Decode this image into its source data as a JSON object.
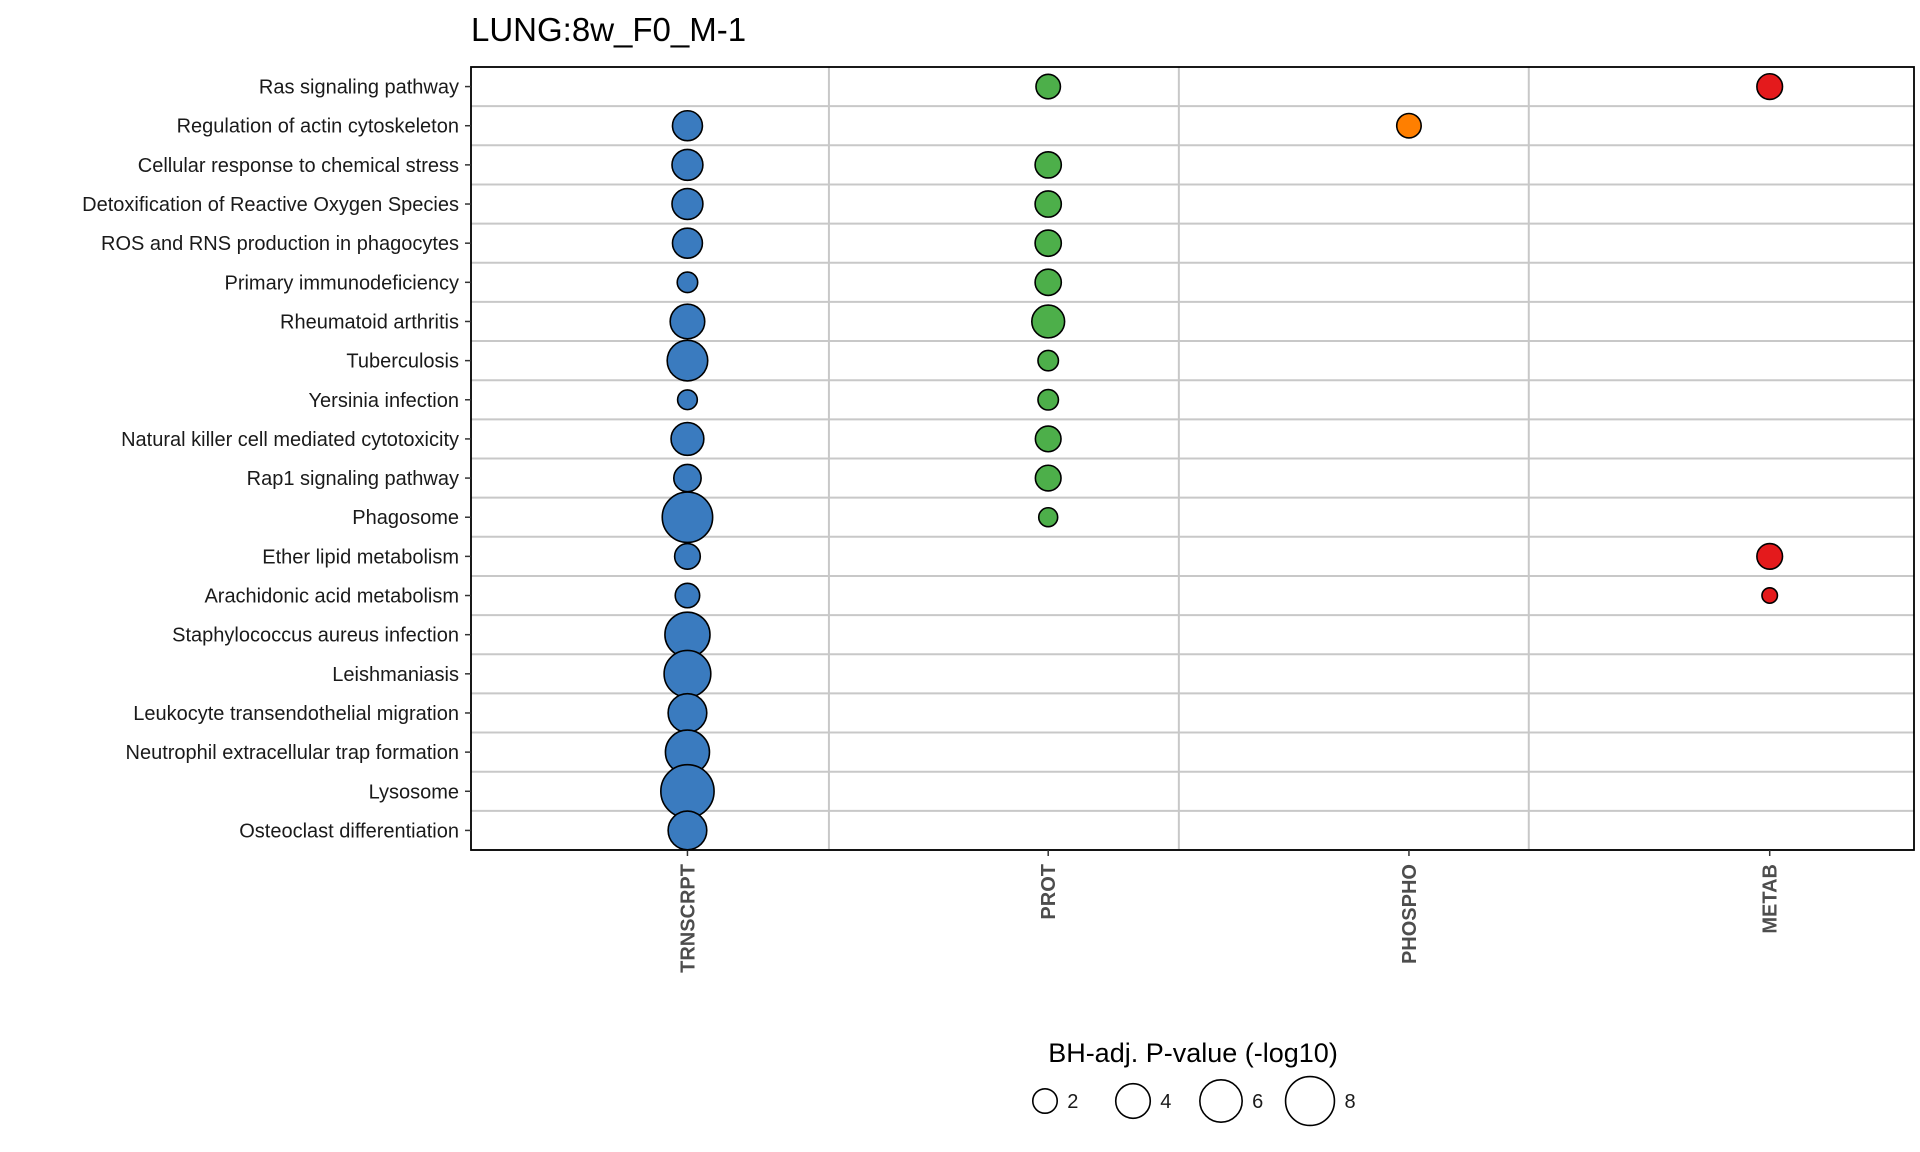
{
  "chart_data": {
    "type": "scatter",
    "title": "LUNG:8w_F0_M-1",
    "xlabel": "",
    "ylabel": "",
    "x_categories": [
      "TRNSCRPT",
      "PROT",
      "PHOSPHO",
      "METAB"
    ],
    "y_categories": [
      "Ras signaling pathway",
      "Regulation of actin cytoskeleton",
      "Cellular response to chemical stress",
      "Detoxification of Reactive Oxygen Species",
      "ROS and RNS production in phagocytes",
      "Primary immunodeficiency",
      "Rheumatoid arthritis",
      "Tuberculosis",
      "Yersinia infection",
      "Natural killer cell mediated cytotoxicity",
      "Rap1 signaling pathway",
      "Phagosome",
      "Ether lipid metabolism",
      "Arachidonic acid metabolism",
      "Staphylococcus aureus infection",
      "Leishmaniasis",
      "Leukocyte transendothelial migration",
      "Neutrophil extracellular trap formation",
      "Lysosome",
      "Osteoclast differentiation"
    ],
    "colors": {
      "TRNSCRPT": "#3a7bbf",
      "PROT": "#4daf4a",
      "PHOSPHO": "#ff7f00",
      "METAB": "#e41a1c"
    },
    "points": [
      {
        "pathway": "Ras signaling pathway",
        "ome": "PROT",
        "value": 2.0
      },
      {
        "pathway": "Ras signaling pathway",
        "ome": "METAB",
        "value": 2.2
      },
      {
        "pathway": "Regulation of actin cytoskeleton",
        "ome": "TRNSCRPT",
        "value": 3.0
      },
      {
        "pathway": "Regulation of actin cytoskeleton",
        "ome": "PHOSPHO",
        "value": 2.0
      },
      {
        "pathway": "Cellular response to chemical stress",
        "ome": "TRNSCRPT",
        "value": 3.2
      },
      {
        "pathway": "Cellular response to chemical stress",
        "ome": "PROT",
        "value": 2.3
      },
      {
        "pathway": "Detoxification of Reactive Oxygen Species",
        "ome": "TRNSCRPT",
        "value": 3.2
      },
      {
        "pathway": "Detoxification of Reactive Oxygen Species",
        "ome": "PROT",
        "value": 2.3
      },
      {
        "pathway": "ROS and RNS production in phagocytes",
        "ome": "TRNSCRPT",
        "value": 3.0
      },
      {
        "pathway": "ROS and RNS production in phagocytes",
        "ome": "PROT",
        "value": 2.3
      },
      {
        "pathway": "Primary immunodeficiency",
        "ome": "TRNSCRPT",
        "value": 1.4
      },
      {
        "pathway": "Primary immunodeficiency",
        "ome": "PROT",
        "value": 2.3
      },
      {
        "pathway": "Rheumatoid arthritis",
        "ome": "TRNSCRPT",
        "value": 4.0
      },
      {
        "pathway": "Rheumatoid arthritis",
        "ome": "PROT",
        "value": 3.6
      },
      {
        "pathway": "Tuberculosis",
        "ome": "TRNSCRPT",
        "value": 5.5
      },
      {
        "pathway": "Tuberculosis",
        "ome": "PROT",
        "value": 1.4
      },
      {
        "pathway": "Yersinia infection",
        "ome": "TRNSCRPT",
        "value": 1.3
      },
      {
        "pathway": "Yersinia infection",
        "ome": "PROT",
        "value": 1.4
      },
      {
        "pathway": "Natural killer cell mediated cytotoxicity",
        "ome": "TRNSCRPT",
        "value": 3.6
      },
      {
        "pathway": "Natural killer cell mediated cytotoxicity",
        "ome": "PROT",
        "value": 2.2
      },
      {
        "pathway": "Rap1 signaling pathway",
        "ome": "TRNSCRPT",
        "value": 2.5
      },
      {
        "pathway": "Rap1 signaling pathway",
        "ome": "PROT",
        "value": 2.2
      },
      {
        "pathway": "Phagosome",
        "ome": "TRNSCRPT",
        "value": 8.5
      },
      {
        "pathway": "Phagosome",
        "ome": "PROT",
        "value": 1.2
      },
      {
        "pathway": "Ether lipid metabolism",
        "ome": "TRNSCRPT",
        "value": 2.2
      },
      {
        "pathway": "Ether lipid metabolism",
        "ome": "METAB",
        "value": 2.2
      },
      {
        "pathway": "Arachidonic acid metabolism",
        "ome": "TRNSCRPT",
        "value": 2.0
      },
      {
        "pathway": "Arachidonic acid metabolism",
        "ome": "METAB",
        "value": 0.8
      },
      {
        "pathway": "Staphylococcus aureus infection",
        "ome": "TRNSCRPT",
        "value": 6.8
      },
      {
        "pathway": "Staphylococcus aureus infection",
        "ome": "PROT",
        "value": null
      },
      {
        "pathway": "Leishmaniasis",
        "ome": "TRNSCRPT",
        "value": 7.3
      },
      {
        "pathway": "Leukocyte transendothelial migration",
        "ome": "TRNSCRPT",
        "value": 5.0
      },
      {
        "pathway": "Neutrophil extracellular trap formation",
        "ome": "TRNSCRPT",
        "value": 6.5
      },
      {
        "pathway": "Lysosome",
        "ome": "TRNSCRPT",
        "value": 9.5
      },
      {
        "pathway": "Osteoclast differentiation",
        "ome": "TRNSCRPT",
        "value": 5.0
      }
    ],
    "size_legend": {
      "title": "BH-adj. P-value (-log10)",
      "breaks": [
        2,
        4,
        6,
        8
      ],
      "labels": [
        "2",
        "4",
        "6",
        "8"
      ]
    },
    "grid": true,
    "legend_position": "bottom"
  }
}
